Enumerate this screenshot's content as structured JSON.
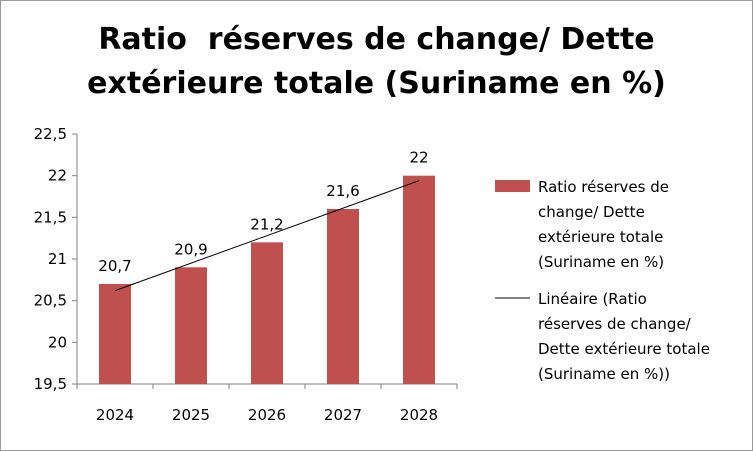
{
  "chart_data": {
    "type": "bar",
    "title_lines": [
      "Ratio  réserves de change/ Dette",
      "extérieure totale (Suriname en %)"
    ],
    "categories": [
      "2024",
      "2025",
      "2026",
      "2027",
      "2028"
    ],
    "series": [
      {
        "name": "Ratio  réserves de change/ Dette extérieure totale (Suriname en %)",
        "values": [
          20.7,
          20.9,
          21.2,
          21.6,
          22
        ],
        "color": "#c0504d"
      }
    ],
    "data_labels": [
      "20,7",
      "20,9",
      "21,2",
      "21,6",
      "22"
    ],
    "trendline": {
      "type": "linear",
      "name": "Linéaire (Ratio réserves de change/ Dette extérieure totale (Suriname en %))",
      "color": "#000000"
    },
    "ylim": [
      19.5,
      22.5
    ],
    "y_ticks": [
      19.5,
      20,
      20.5,
      21,
      21.5,
      22,
      22.5
    ],
    "y_tick_labels": [
      "19,5",
      "20",
      "20,5",
      "21",
      "21,5",
      "22",
      "22,5"
    ],
    "grid": false,
    "legend_position": "right",
    "legend_lines": {
      "series": [
        "Ratio  réserves de",
        "change/ Dette",
        "extérieure totale",
        "(Suriname en %)"
      ],
      "trendline": [
        "Linéaire (Ratio",
        "réserves de change/",
        "Dette extérieure  totale",
        "(Suriname en %))"
      ]
    }
  }
}
